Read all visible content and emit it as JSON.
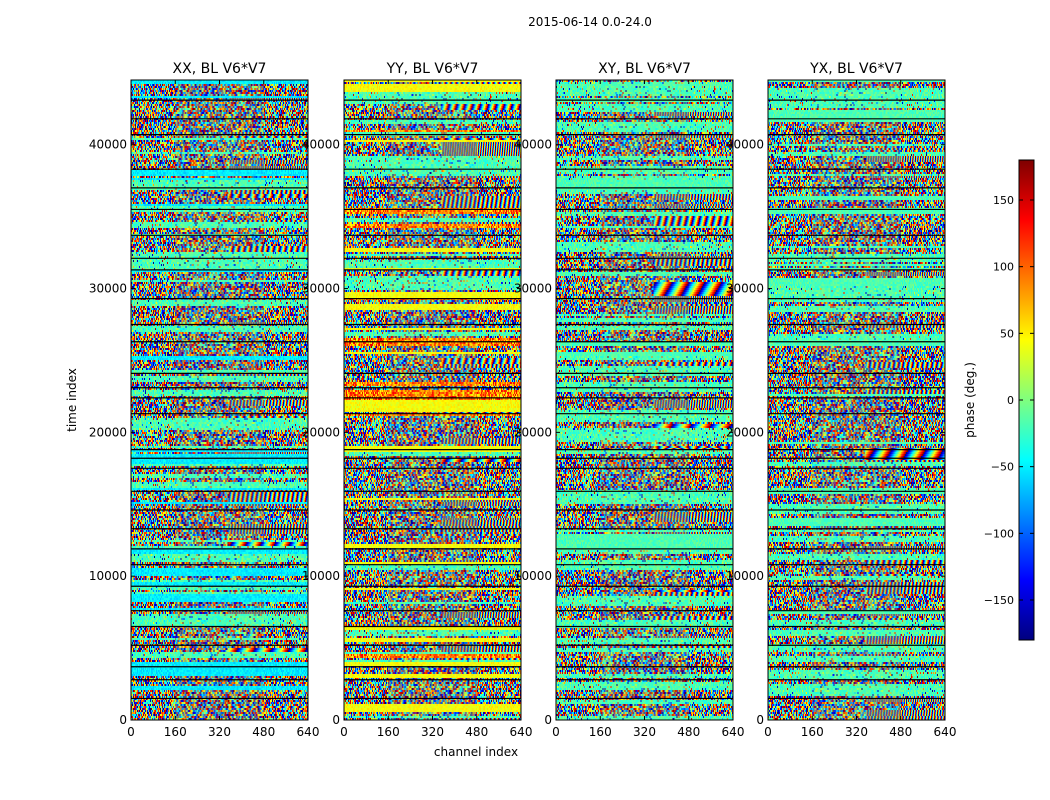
{
  "figure": {
    "suptitle": "2015-06-14 0.0-24.0"
  },
  "chart_data": {
    "type": "heatmap",
    "xlabel": "channel index",
    "ylabel": "time index",
    "xlim": [
      0,
      640
    ],
    "ylim": [
      0,
      44500
    ],
    "xticks": [
      0,
      160,
      320,
      480,
      640
    ],
    "yticks": [
      0,
      10000,
      20000,
      30000,
      40000
    ],
    "panels": [
      {
        "title": "XX, BL V6*V7",
        "product": "XX"
      },
      {
        "title": "YY, BL V6*V7",
        "product": "YY"
      },
      {
        "title": "XY, BL V6*V7",
        "product": "XY"
      },
      {
        "title": "YX, BL V6*V7",
        "product": "YX"
      }
    ],
    "colorbar": {
      "label": "phase (deg.)",
      "range": [
        -180,
        180
      ],
      "ticks": [
        -150,
        -100,
        -50,
        0,
        50,
        100,
        150
      ],
      "tick_labels": [
        "−150",
        "−100",
        "−50",
        "0",
        "50",
        "100",
        "150"
      ],
      "colormap": "jet",
      "colors": [
        "#00007f",
        "#0000ff",
        "#007fff",
        "#00ffff",
        "#7fff7f",
        "#ffff00",
        "#ff7f00",
        "#ff0000",
        "#7f0000"
      ]
    },
    "scan_gaps_time_index": [
      1500,
      2800,
      3700,
      5200,
      6500,
      7600,
      9300,
      10800,
      11900,
      13300,
      14600,
      15900,
      17500,
      18200,
      18800,
      21300,
      22400,
      23100,
      24100,
      26300,
      27500,
      29300,
      31300,
      32100,
      33700,
      35500,
      37000,
      38300,
      40700,
      41800,
      43100
    ]
  }
}
